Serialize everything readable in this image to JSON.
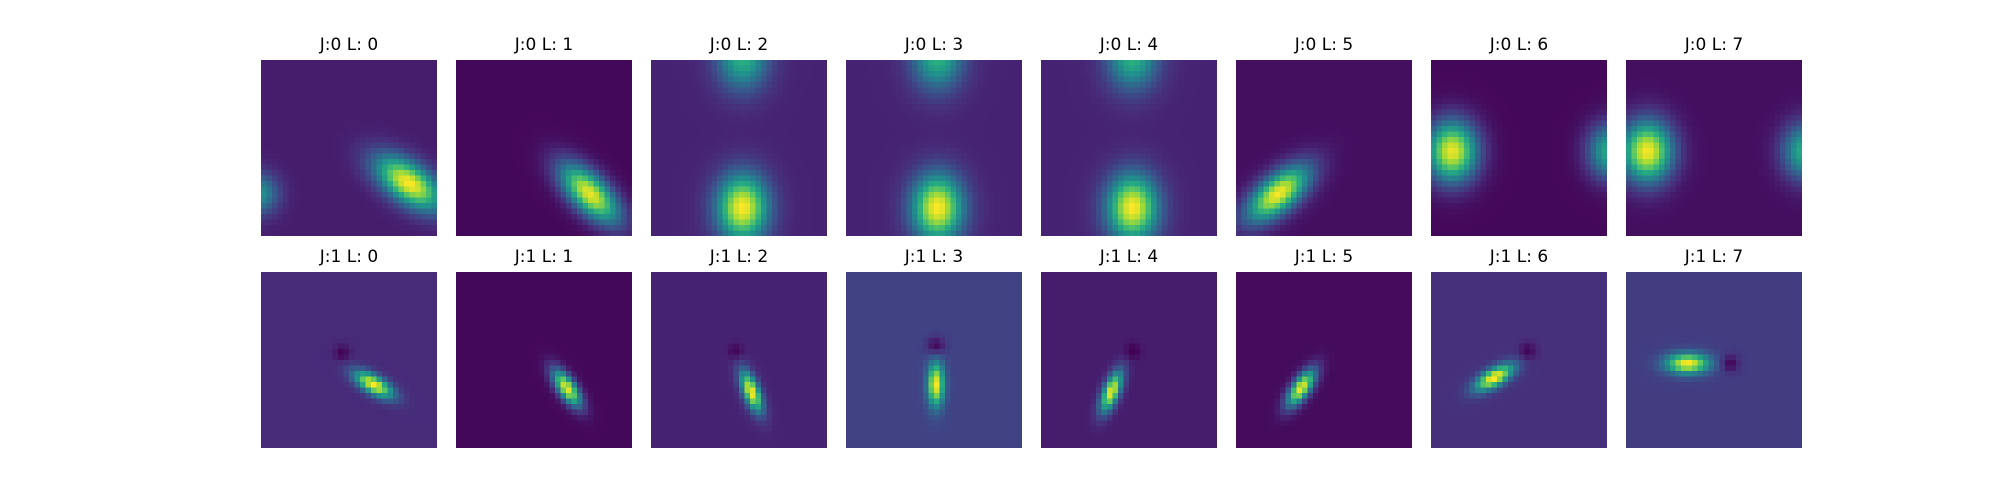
{
  "chart_data": {
    "type": "heatmap",
    "colormap": "viridis",
    "axes": "off",
    "rows": 2,
    "cols": 8,
    "panels": [
      {
        "title": "J:0 L: 0",
        "background": 0.08,
        "blobs": [
          {
            "x": 0.84,
            "y": 0.7,
            "sx": 0.15,
            "sy": 0.075,
            "angle": 35,
            "amp": 0.92
          },
          {
            "x": -0.02,
            "y": 0.76,
            "sx": 0.08,
            "sy": 0.08,
            "angle": 0,
            "amp": 0.45
          }
        ]
      },
      {
        "title": "J:0 L: 1",
        "background": 0.02,
        "blobs": [
          {
            "x": 0.76,
            "y": 0.76,
            "sx": 0.15,
            "sy": 0.07,
            "angle": 45,
            "amp": 0.95
          }
        ]
      },
      {
        "title": "J:0 L: 2",
        "background": 0.1,
        "blobs": [
          {
            "x": 0.52,
            "y": 0.84,
            "sx": 0.1,
            "sy": 0.13,
            "angle": 0,
            "amp": 0.9
          },
          {
            "x": 0.52,
            "y": -0.02,
            "sx": 0.1,
            "sy": 0.13,
            "angle": 0,
            "amp": 0.55
          }
        ]
      },
      {
        "title": "J:0 L: 3",
        "background": 0.1,
        "blobs": [
          {
            "x": 0.52,
            "y": 0.84,
            "sx": 0.1,
            "sy": 0.13,
            "angle": 0,
            "amp": 0.9
          },
          {
            "x": 0.52,
            "y": -0.02,
            "sx": 0.1,
            "sy": 0.13,
            "angle": 0,
            "amp": 0.55
          }
        ]
      },
      {
        "title": "J:0 L: 4",
        "background": 0.1,
        "blobs": [
          {
            "x": 0.52,
            "y": 0.84,
            "sx": 0.1,
            "sy": 0.13,
            "angle": 0,
            "amp": 0.9
          },
          {
            "x": 0.52,
            "y": -0.02,
            "sx": 0.1,
            "sy": 0.13,
            "angle": 0,
            "amp": 0.55
          }
        ]
      },
      {
        "title": "J:0 L: 5",
        "background": 0.04,
        "blobs": [
          {
            "x": 0.24,
            "y": 0.76,
            "sx": 0.15,
            "sy": 0.07,
            "angle": -40,
            "amp": 0.95
          }
        ]
      },
      {
        "title": "J:0 L: 6",
        "background": 0.02,
        "blobs": [
          {
            "x": 0.12,
            "y": 0.52,
            "sx": 0.1,
            "sy": 0.12,
            "angle": 0,
            "amp": 0.95
          },
          {
            "x": 1.02,
            "y": 0.52,
            "sx": 0.09,
            "sy": 0.11,
            "angle": 0,
            "amp": 0.6
          }
        ]
      },
      {
        "title": "J:0 L: 7",
        "background": 0.04,
        "blobs": [
          {
            "x": 0.12,
            "y": 0.52,
            "sx": 0.1,
            "sy": 0.12,
            "angle": 0,
            "amp": 0.95
          },
          {
            "x": 1.02,
            "y": 0.52,
            "sx": 0.09,
            "sy": 0.11,
            "angle": 0,
            "amp": 0.6
          }
        ]
      },
      {
        "title": "J:1 L: 0",
        "background": 0.12,
        "blobs": [
          {
            "x": 0.64,
            "y": 0.64,
            "sx": 0.085,
            "sy": 0.035,
            "angle": 30,
            "amp": 0.88
          },
          {
            "x": 0.46,
            "y": 0.46,
            "sx": 0.03,
            "sy": 0.03,
            "angle": 0,
            "amp": -0.12
          }
        ]
      },
      {
        "title": "J:1 L: 1",
        "background": 0.02,
        "blobs": [
          {
            "x": 0.63,
            "y": 0.66,
            "sx": 0.085,
            "sy": 0.035,
            "angle": 55,
            "amp": 0.95
          }
        ]
      },
      {
        "title": "J:1 L: 2",
        "background": 0.1,
        "blobs": [
          {
            "x": 0.57,
            "y": 0.68,
            "sx": 0.085,
            "sy": 0.032,
            "angle": 68,
            "amp": 0.9
          },
          {
            "x": 0.48,
            "y": 0.45,
            "sx": 0.03,
            "sy": 0.03,
            "angle": 0,
            "amp": -0.1
          }
        ]
      },
      {
        "title": "J:1 L: 3",
        "background": 0.2,
        "blobs": [
          {
            "x": 0.51,
            "y": 0.64,
            "sx": 0.085,
            "sy": 0.032,
            "angle": 90,
            "amp": 0.8
          },
          {
            "x": 0.51,
            "y": 0.42,
            "sx": 0.035,
            "sy": 0.035,
            "angle": 0,
            "amp": -0.2
          }
        ]
      },
      {
        "title": "J:1 L: 4",
        "background": 0.08,
        "blobs": [
          {
            "x": 0.4,
            "y": 0.68,
            "sx": 0.085,
            "sy": 0.032,
            "angle": -68,
            "amp": 0.9
          },
          {
            "x": 0.52,
            "y": 0.45,
            "sx": 0.03,
            "sy": 0.03,
            "angle": 0,
            "amp": -0.1
          }
        ]
      },
      {
        "title": "J:1 L: 5",
        "background": 0.03,
        "blobs": [
          {
            "x": 0.37,
            "y": 0.66,
            "sx": 0.085,
            "sy": 0.035,
            "angle": -55,
            "amp": 0.95
          }
        ]
      },
      {
        "title": "J:1 L: 6",
        "background": 0.14,
        "blobs": [
          {
            "x": 0.36,
            "y": 0.6,
            "sx": 0.085,
            "sy": 0.035,
            "angle": -30,
            "amp": 0.88
          },
          {
            "x": 0.55,
            "y": 0.45,
            "sx": 0.035,
            "sy": 0.035,
            "angle": 0,
            "amp": -0.14
          }
        ]
      },
      {
        "title": "J:1 L: 7",
        "background": 0.18,
        "blobs": [
          {
            "x": 0.35,
            "y": 0.52,
            "sx": 0.085,
            "sy": 0.04,
            "angle": 0,
            "amp": 0.82
          },
          {
            "x": 0.59,
            "y": 0.52,
            "sx": 0.035,
            "sy": 0.035,
            "angle": 0,
            "amp": -0.18
          }
        ]
      }
    ]
  }
}
